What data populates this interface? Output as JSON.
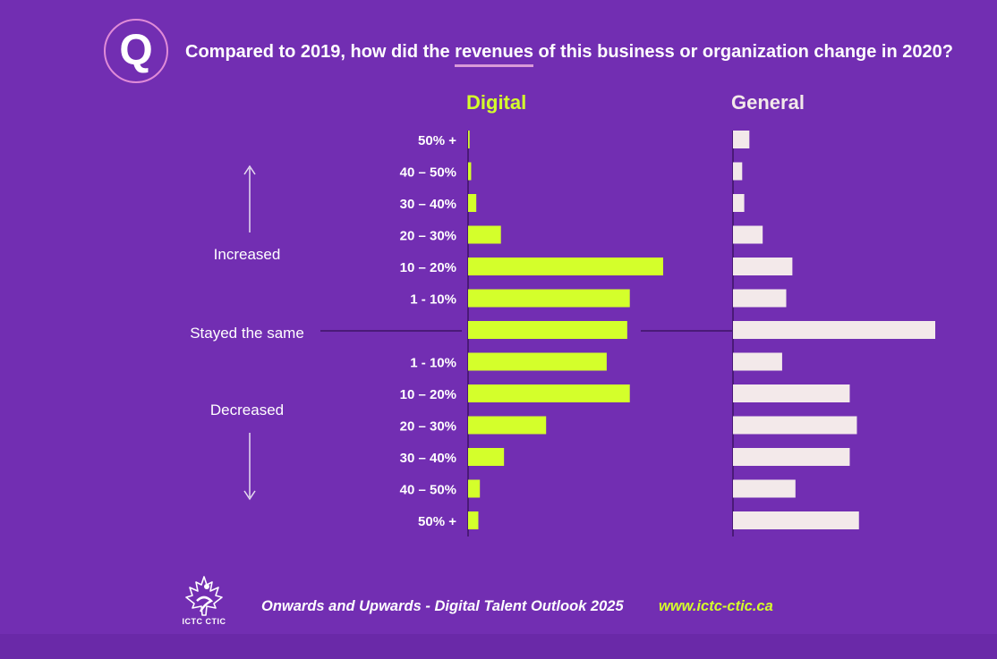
{
  "question": {
    "badge": "Q",
    "text_before": "Compared to 2019, how did the ",
    "text_underlined": "revenues",
    "text_after": " of this business or organization change in 2020?"
  },
  "footer": {
    "title": "Onwards and Upwards - Digital Talent Outlook 2025",
    "url": "www.ictc-ctic.ca",
    "logo_text": "ICTC CTIC"
  },
  "colors": {
    "background": "#722eb2",
    "digital": "#d4ff2b",
    "general": "#f3e9ea",
    "text": "#ffffff",
    "axis": "#4a1a78"
  },
  "chart_data": {
    "type": "bar",
    "orientation": "horizontal",
    "categories": [
      "50% +",
      "40 – 50%",
      "30 – 40%",
      "20 – 30%",
      "10 – 20%",
      "1 - 10%",
      "",
      "1 - 10%",
      "10 – 20%",
      "20 – 30%",
      "30 – 40%",
      "40 – 50%",
      "50% +"
    ],
    "groups": [
      {
        "label": "Increased",
        "direction": "up"
      },
      {
        "label": "Stayed the same"
      },
      {
        "label": "Decreased",
        "direction": "down"
      }
    ],
    "series": [
      {
        "name": "Digital",
        "values": [
          0.3,
          0.6,
          1.6,
          6.4,
          38.0,
          31.5,
          31.0,
          27.0,
          31.5,
          15.2,
          7.0,
          2.3,
          2.0
        ]
      },
      {
        "name": "General",
        "values": [
          3.2,
          1.8,
          2.2,
          5.8,
          11.6,
          10.4,
          39.5,
          9.6,
          22.8,
          24.2,
          22.8,
          12.2,
          24.6
        ]
      }
    ],
    "xlim": [
      0,
      45
    ],
    "xlabel": "",
    "ylabel": "",
    "grid": false,
    "legend": "none"
  }
}
